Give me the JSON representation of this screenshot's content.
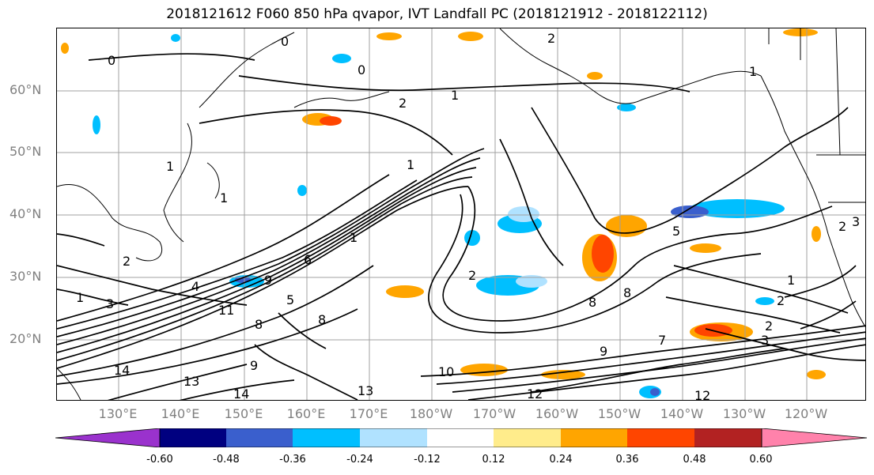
{
  "title": "2018121612 F060 850 hPa qvapor, IVT Landfall PC (2018121912 - 2018122112)",
  "map": {
    "lat_labels": [
      "60°N",
      "50°N",
      "40°N",
      "30°N",
      "20°N"
    ],
    "lon_labels": [
      "130°E",
      "140°E",
      "150°E",
      "160°E",
      "170°E",
      "180°W",
      "170°W",
      "160°W",
      "150°W",
      "140°W",
      "130°W",
      "120°W"
    ],
    "contour_labels": [
      "0",
      "0",
      "0",
      "1",
      "2",
      "1",
      "1",
      "1",
      "2",
      "2",
      "1",
      "1",
      "3",
      "4",
      "6",
      "9",
      "11",
      "13",
      "14",
      "14",
      "8",
      "9",
      "8",
      "5",
      "2",
      "8",
      "8",
      "5",
      "7",
      "9",
      "10",
      "12",
      "12",
      "13",
      "3",
      "2",
      "2",
      "1",
      "2",
      "3",
      "1"
    ]
  },
  "colorbar": {
    "ticks": [
      "-0.60",
      "-0.48",
      "-0.36",
      "-0.24",
      "-0.12",
      "0.12",
      "0.24",
      "0.36",
      "0.48",
      "0.60"
    ],
    "colors": [
      "#9a32cd",
      "#000080",
      "#3a5fcd",
      "#00bfff",
      "#b0e2ff",
      "#ffffff",
      "#ffec8b",
      "#ffa500",
      "#ff4500",
      "#b22222",
      "#ff82ab"
    ]
  }
}
